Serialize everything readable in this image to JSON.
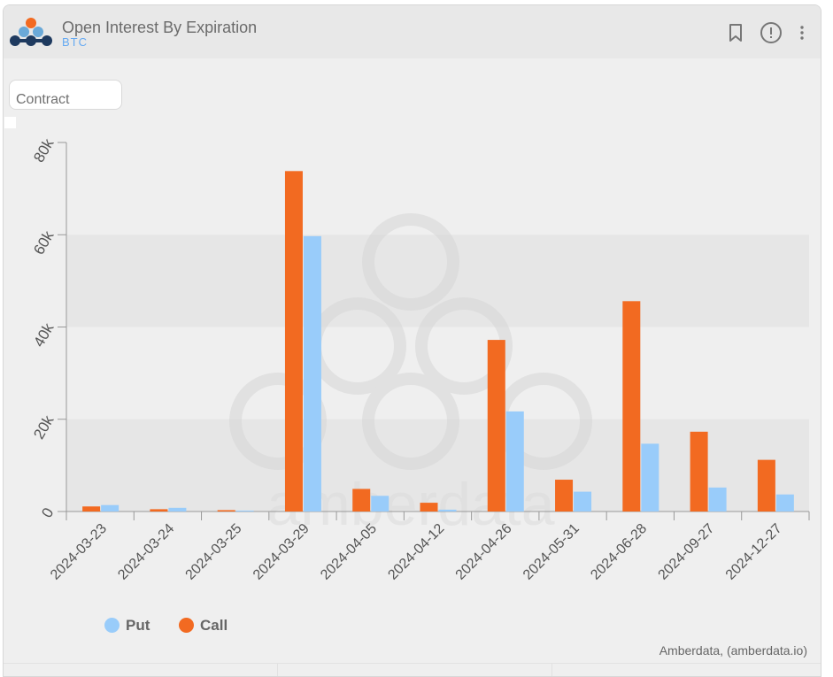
{
  "header": {
    "title": "Open Interest By Expiration",
    "subtitle": "BTC"
  },
  "controls": {
    "contract_label": "Contract"
  },
  "credits": "Amberdata, (amberdata.io)",
  "watermark": "amberdata",
  "colors": {
    "put": "#99ccfa",
    "call": "#f26a21",
    "brand_dark": "#1e3a5f",
    "brand_light": "#6aa9d8",
    "brand_orange": "#f26a21"
  },
  "icons": [
    "brand-logo-icon",
    "bookmark-icon",
    "info-icon",
    "more-vertical-icon"
  ],
  "chart_data": {
    "type": "bar",
    "categories": [
      "2024-03-23",
      "2024-03-24",
      "2024-03-25",
      "2024-03-29",
      "2024-04-05",
      "2024-04-12",
      "2024-04-26",
      "2024-05-31",
      "2024-06-28",
      "2024-09-27",
      "2024-12-27"
    ],
    "series": [
      {
        "name": "Call",
        "color": "#f26a21",
        "values": [
          1100,
          500,
          300,
          73800,
          4900,
          1900,
          37200,
          6900,
          45600,
          17300,
          11200
        ]
      },
      {
        "name": "Put",
        "color": "#99ccfa",
        "values": [
          1400,
          800,
          200,
          59700,
          3400,
          400,
          21700,
          4300,
          14700,
          5200,
          3700
        ]
      }
    ],
    "legend": [
      {
        "name": "Put",
        "color": "#99ccfa"
      },
      {
        "name": "Call",
        "color": "#f26a21"
      }
    ],
    "legend_position": "bottom-left",
    "yticks": [
      "0",
      "20k",
      "40k",
      "60k",
      "80k"
    ],
    "ylim": [
      0,
      80000
    ],
    "grid": "alternating bands"
  }
}
